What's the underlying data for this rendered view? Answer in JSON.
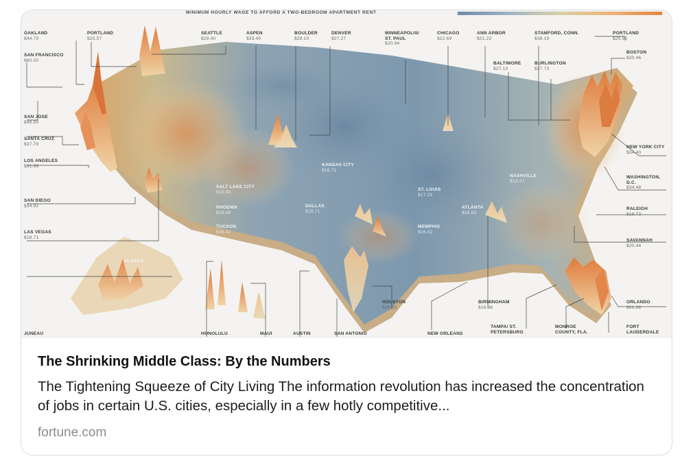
{
  "card": {
    "title": "The Shrinking Middle Class: By the Numbers",
    "description": "The Tightening Squeeze of City Living The information revolution has increased the concentration of jobs in certain U.S. cities, especially in a few hotly competitive...",
    "domain": "fortune.com"
  },
  "map": {
    "header": "MINIMUM HOURLY WAGE TO AFFORD A TWO-BEDROOM APARTMENT RENT",
    "labels": [
      {
        "name": "OAKLAND",
        "value": "$44.79"
      },
      {
        "name": "SAN FRANCISCO",
        "value": "$60.00"
      },
      {
        "name": "SAN JOSE",
        "value": "$48.50"
      },
      {
        "name": "SANTA CRUZ",
        "value": "$37.79"
      },
      {
        "name": "LOS ANGELES",
        "value": "$31.98"
      },
      {
        "name": "SAN DIEGO",
        "value": "$34.92"
      },
      {
        "name": "LAS VEGAS",
        "value": "$18.71"
      },
      {
        "name": "PORTLAND",
        "value": "$25.57"
      },
      {
        "name": "SEATTLE",
        "value": "$29.40"
      },
      {
        "name": "ASPEN",
        "value": "$33.40"
      },
      {
        "name": "BOULDER",
        "value": "$28.10"
      },
      {
        "name": "DENVER",
        "value": "$27.27"
      },
      {
        "name": "MINNEAPOLIS/ ST. PAUL",
        "value": "$20.94"
      },
      {
        "name": "CHICAGO",
        "value": "$22.69"
      },
      {
        "name": "ANN ARBOR",
        "value": "$21.22"
      },
      {
        "name": "STAMFORD, CONN.",
        "value": "$38.19"
      },
      {
        "name": "PORTLAND",
        "value": "$25.92"
      },
      {
        "name": "BOSTON",
        "value": "$33.46"
      },
      {
        "name": "BALTIMORE",
        "value": "$27.13"
      },
      {
        "name": "BURLINGTON",
        "value": "$27.73"
      },
      {
        "name": "NEW YORK CITY",
        "value": "$34.40"
      },
      {
        "name": "WASHINGTON, D.C.",
        "value": "$34.48"
      },
      {
        "name": "RALEIGH",
        "value": "$19.73"
      },
      {
        "name": "SAVANNAH",
        "value": "$20.44"
      },
      {
        "name": "ORLANDO",
        "value": "$21.08"
      },
      {
        "name": "FORT LAUDERDALE",
        "value": ""
      },
      {
        "name": "MONROE COUNTY, FLA.",
        "value": ""
      },
      {
        "name": "TAMPA/ ST. PETERSBURG",
        "value": ""
      },
      {
        "name": "BIRMINGHAM",
        "value": "$16.96"
      },
      {
        "name": "NEW ORLEANS",
        "value": ""
      },
      {
        "name": "HOUSTON",
        "value": "$20.50"
      },
      {
        "name": "SAN ANTONIO",
        "value": ""
      },
      {
        "name": "AUSTIN",
        "value": ""
      },
      {
        "name": "MAUI",
        "value": ""
      },
      {
        "name": "HONOLULU",
        "value": ""
      },
      {
        "name": "JUNEAU",
        "value": ""
      },
      {
        "name": "KANSAS CITY",
        "value": "$16.71"
      },
      {
        "name": "SALT LAKE CITY",
        "value": "$19.90"
      },
      {
        "name": "PHOENIX",
        "value": "$19.48"
      },
      {
        "name": "TUCSON",
        "value": "$16.42"
      },
      {
        "name": "DALLAS",
        "value": "$20.71"
      },
      {
        "name": "ST. LOUIS",
        "value": "$17.23"
      },
      {
        "name": "MEMPHIS",
        "value": "$16.02"
      },
      {
        "name": "ATLANTA",
        "value": "$19.83"
      },
      {
        "name": "NASHVILLE",
        "value": "$19.27"
      },
      {
        "name": "ALASKA",
        "value": ""
      },
      {
        "name": "HAWAII",
        "value": ""
      }
    ]
  }
}
